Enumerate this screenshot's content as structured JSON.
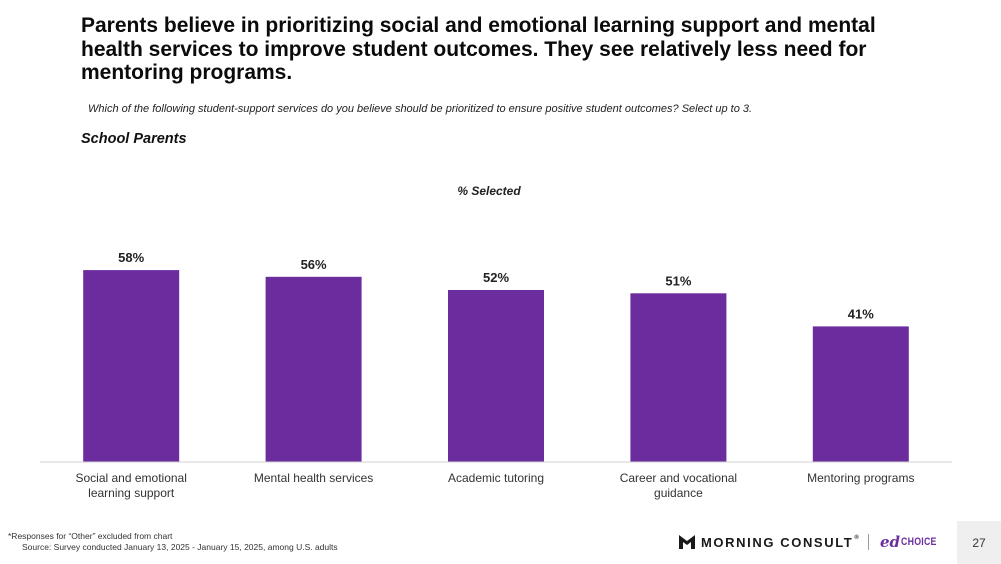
{
  "slide": {
    "title": "Parents believe in prioritizing social and emotional learning support and mental health services to improve student outcomes. They see relatively less need for mentoring programs.",
    "question": "Which of the following student-support services do you believe should be prioritized to ensure positive student outcomes? Select up to 3.",
    "subgroup": "School Parents",
    "footnote_line1": "*Responses for “Other” excluded from chart",
    "footnote_line2": "Source: Survey conducted January 13, 2025 - January 15, 2025, among U.S. adults",
    "page_number": "27"
  },
  "branding": {
    "morning_consult": "MORNING CONSULT",
    "trademark": "®",
    "edchoice_ed": "ed",
    "edchoice_choice": "CHOICE",
    "edchoice_color": "#6b2fa0"
  },
  "chart_data": {
    "type": "bar",
    "title": "% Selected",
    "categories": [
      "Social and emotional learning support",
      "Mental health services",
      "Academic tutoring",
      "Career and vocational guidance",
      "Mentoring programs"
    ],
    "values": [
      58,
      56,
      52,
      51,
      41
    ],
    "value_labels": [
      "58%",
      "56%",
      "52%",
      "51%",
      "41%"
    ],
    "unit": "%",
    "ylim": [
      0,
      70
    ],
    "grid": false,
    "bar_color": "#6b2d9e"
  }
}
